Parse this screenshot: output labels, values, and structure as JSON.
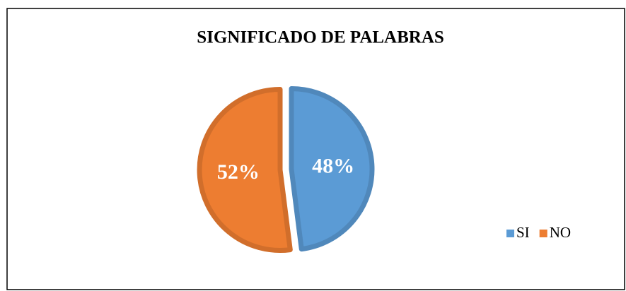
{
  "chart_data": {
    "type": "pie",
    "title": "SIGNIFICADO DE PALABRAS",
    "categories": [
      "SI",
      "NO"
    ],
    "values": [
      48,
      52
    ],
    "value_labels": [
      "48%",
      "52%"
    ],
    "colors": [
      "#5b9bd5",
      "#ed7d31"
    ],
    "legend": "right"
  }
}
